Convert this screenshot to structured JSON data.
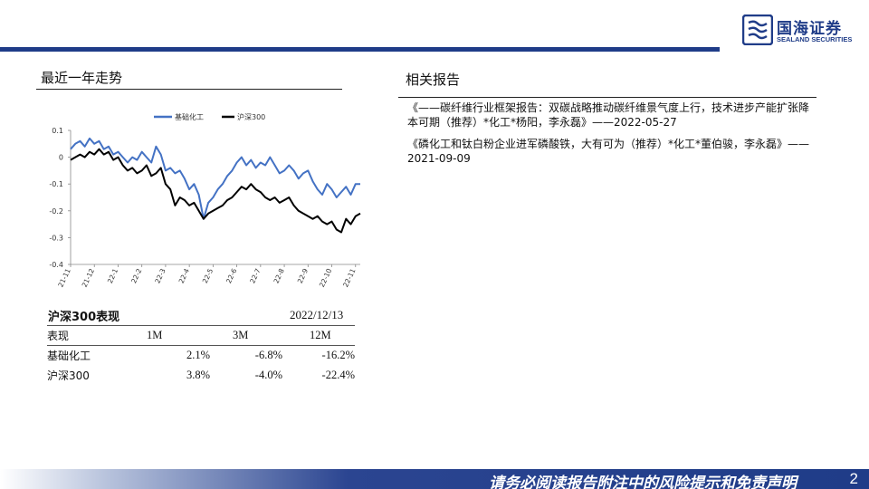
{
  "header": {
    "logo_cn": "国海证券",
    "logo_en": "SEALAND SECURITIES"
  },
  "left_section": {
    "title": "最近一年走势"
  },
  "right_section": {
    "title": "相关报告",
    "reports": [
      "《——碳纤维行业框架报告：双碳战略推动碳纤维景气度上行，技术进步产能扩张降本可期（推荐）*化工*杨阳，李永磊》——2022-05-27",
      "《磷化工和钛白粉企业进军磷酸铁，大有可为（推荐）*化工*董伯骏，李永磊》——2021-09-09"
    ]
  },
  "performance": {
    "title": "沪深300表现",
    "date": "2022/12/13",
    "columns": [
      "表现",
      "1M",
      "3M",
      "12M"
    ],
    "rows": [
      {
        "name": "基础化工",
        "m1": "2.1%",
        "m3": "-6.8%",
        "m12": "-16.2%"
      },
      {
        "name": "沪深300",
        "m1": "3.8%",
        "m3": "-4.0%",
        "m12": "-22.4%"
      }
    ]
  },
  "footer": {
    "disclaimer": "请务必阅读报告附注中的风险提示和免责声明",
    "page": "2"
  },
  "colors": {
    "brand": "#1f3c88",
    "series_chem": "#4472c4",
    "series_index": "#000000"
  },
  "chart_data": {
    "type": "line",
    "title": "",
    "xlabel": "",
    "ylabel": "",
    "ylim": [
      -0.4,
      0.1
    ],
    "yticks": [
      "0.1",
      "0",
      "-0.1",
      "-0.2",
      "-0.3",
      "-0.4"
    ],
    "ytick_values": [
      0.1,
      0,
      -0.1,
      -0.2,
      -0.3,
      -0.4
    ],
    "xticks": [
      "21-11",
      "21-12",
      "22-1",
      "22-2",
      "22-3",
      "22-4",
      "22-5",
      "22-6",
      "22-7",
      "22-8",
      "22-9",
      "22-10",
      "22-11"
    ],
    "legend_position": "top",
    "grid": false,
    "series": [
      {
        "name": "基础化工",
        "color": "#4472c4",
        "x": [
          0,
          0.2,
          0.4,
          0.6,
          0.8,
          1.0,
          1.2,
          1.4,
          1.6,
          1.8,
          2.0,
          2.2,
          2.4,
          2.6,
          2.8,
          3.0,
          3.2,
          3.4,
          3.6,
          3.8,
          4.0,
          4.2,
          4.4,
          4.6,
          4.8,
          5.0,
          5.2,
          5.4,
          5.6,
          5.8,
          6.0,
          6.2,
          6.4,
          6.6,
          6.8,
          7.0,
          7.2,
          7.4,
          7.6,
          7.8,
          8.0,
          8.2,
          8.4,
          8.6,
          8.8,
          9.0,
          9.2,
          9.4,
          9.6,
          9.8,
          10.0,
          10.2,
          10.4,
          10.6,
          10.8,
          11.0,
          11.2,
          11.4,
          11.6,
          11.8,
          12.0,
          12.2
        ],
        "values": [
          0.03,
          0.05,
          0.06,
          0.04,
          0.07,
          0.05,
          0.06,
          0.03,
          0.04,
          0.01,
          0.02,
          0.0,
          -0.02,
          0.0,
          -0.01,
          0.02,
          0.0,
          -0.02,
          0.04,
          0.01,
          -0.05,
          -0.04,
          -0.06,
          -0.05,
          -0.08,
          -0.12,
          -0.1,
          -0.14,
          -0.23,
          -0.17,
          -0.15,
          -0.12,
          -0.1,
          -0.07,
          -0.05,
          -0.02,
          0.0,
          -0.03,
          -0.01,
          -0.04,
          -0.02,
          -0.03,
          0.0,
          -0.03,
          -0.06,
          -0.05,
          -0.03,
          -0.05,
          -0.08,
          -0.06,
          -0.05,
          -0.09,
          -0.12,
          -0.14,
          -0.1,
          -0.12,
          -0.15,
          -0.13,
          -0.11,
          -0.14,
          -0.1,
          -0.1
        ]
      },
      {
        "name": "沪深300",
        "color": "#000000",
        "x": [
          0,
          0.2,
          0.4,
          0.6,
          0.8,
          1.0,
          1.2,
          1.4,
          1.6,
          1.8,
          2.0,
          2.2,
          2.4,
          2.6,
          2.8,
          3.0,
          3.2,
          3.4,
          3.6,
          3.8,
          4.0,
          4.2,
          4.4,
          4.6,
          4.8,
          5.0,
          5.2,
          5.4,
          5.6,
          5.8,
          6.0,
          6.2,
          6.4,
          6.6,
          6.8,
          7.0,
          7.2,
          7.4,
          7.6,
          7.8,
          8.0,
          8.2,
          8.4,
          8.6,
          8.8,
          9.0,
          9.2,
          9.4,
          9.6,
          9.8,
          10.0,
          10.2,
          10.4,
          10.6,
          10.8,
          11.0,
          11.2,
          11.4,
          11.6,
          11.8,
          12.0,
          12.2
        ],
        "values": [
          -0.01,
          0.0,
          0.01,
          0.0,
          0.02,
          0.01,
          0.03,
          0.01,
          0.02,
          -0.01,
          0.0,
          -0.03,
          -0.05,
          -0.04,
          -0.06,
          -0.05,
          -0.03,
          -0.07,
          -0.06,
          -0.04,
          -0.1,
          -0.12,
          -0.18,
          -0.15,
          -0.16,
          -0.18,
          -0.17,
          -0.2,
          -0.23,
          -0.21,
          -0.2,
          -0.19,
          -0.18,
          -0.16,
          -0.15,
          -0.13,
          -0.11,
          -0.12,
          -0.1,
          -0.12,
          -0.13,
          -0.15,
          -0.16,
          -0.15,
          -0.17,
          -0.16,
          -0.15,
          -0.18,
          -0.2,
          -0.21,
          -0.22,
          -0.23,
          -0.22,
          -0.24,
          -0.25,
          -0.24,
          -0.27,
          -0.28,
          -0.23,
          -0.25,
          -0.22,
          -0.21
        ]
      }
    ]
  }
}
